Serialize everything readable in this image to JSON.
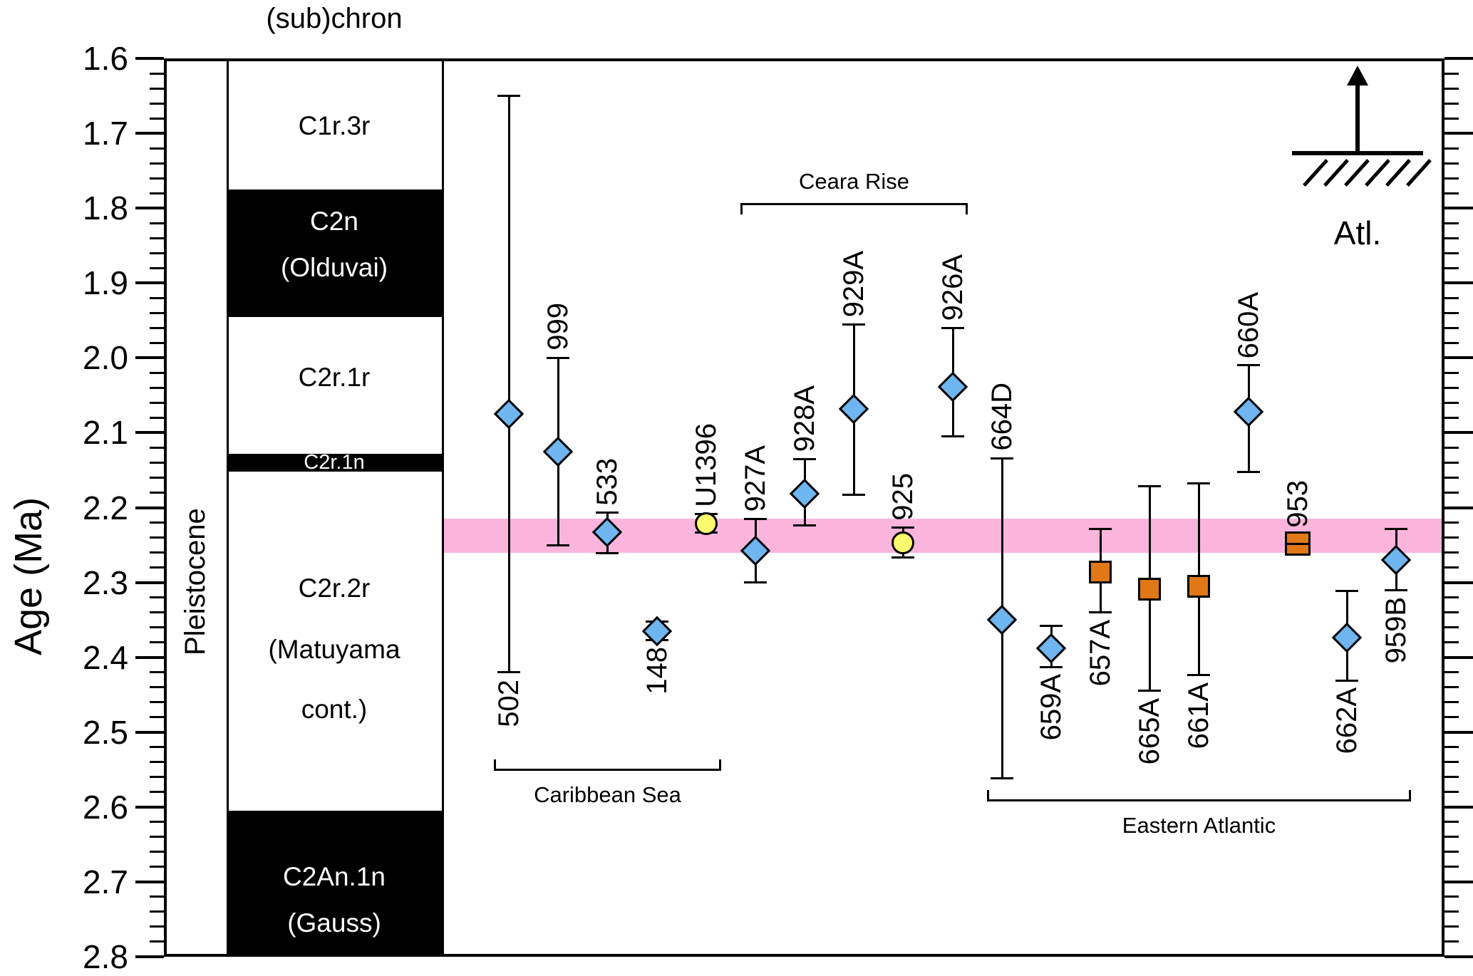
{
  "chart_data": {
    "type": "scatter",
    "title": "",
    "ylabel": "Age (Ma)",
    "header": "(sub)chron",
    "epoch_label": "Pleistocene",
    "ylim": [
      1.6,
      2.8
    ],
    "y_direction": "age-increases-downward",
    "y_major_step": 0.1,
    "y_minor_step": 0.02,
    "y_tick_labels": [
      "1.6",
      "1.7",
      "1.8",
      "1.9",
      "2.0",
      "2.1",
      "2.2",
      "2.3",
      "2.4",
      "2.5",
      "2.6",
      "2.7",
      "2.8"
    ],
    "grid": false,
    "highlight_band": {
      "from_ma": 2.215,
      "to_ma": 2.261,
      "color": "#FBB5DC"
    },
    "polarity_column": [
      {
        "name": "C1r.3r",
        "from_ma": 1.6,
        "to_ma": 1.775,
        "fill": "white",
        "labels": [
          {
            "text": "C1r.3r",
            "age": 1.69,
            "size": "normal"
          }
        ]
      },
      {
        "name": "C2n (Olduvai)",
        "from_ma": 1.775,
        "to_ma": 1.945,
        "fill": "black",
        "labels": [
          {
            "text": "C2n",
            "age": 1.818,
            "size": "normal"
          },
          {
            "text": "(Olduvai)",
            "age": 1.88,
            "size": "normal"
          }
        ]
      },
      {
        "name": "C2r.1r",
        "from_ma": 1.945,
        "to_ma": 2.128,
        "fill": "white",
        "labels": [
          {
            "text": "C2r.1r",
            "age": 2.026,
            "size": "normal"
          }
        ]
      },
      {
        "name": "C2r.1n",
        "from_ma": 2.128,
        "to_ma": 2.152,
        "fill": "black",
        "labels": [
          {
            "text": "C2r.1n",
            "age": 2.14,
            "size": "small"
          }
        ]
      },
      {
        "name": "C2r.2r (Matuyama cont.)",
        "from_ma": 2.152,
        "to_ma": 2.605,
        "fill": "white",
        "labels": [
          {
            "text": "C2r.2r",
            "age": 2.308,
            "size": "normal"
          },
          {
            "text": "(Matuyama",
            "age": 2.39,
            "size": "normal"
          },
          {
            "text": "cont.)",
            "age": 2.47,
            "size": "normal"
          }
        ]
      },
      {
        "name": "C2An.1n (Gauss)",
        "from_ma": 2.605,
        "to_ma": 2.8,
        "fill": "black",
        "labels": [
          {
            "text": "C2An.1n",
            "age": 2.693,
            "size": "normal"
          },
          {
            "text": "(Gauss)",
            "age": 2.755,
            "size": "normal"
          }
        ]
      }
    ],
    "sites": [
      {
        "id": "502",
        "marker": "diamond",
        "color_key": "blue",
        "value_ma": 2.075,
        "err_min_ma": 1.65,
        "err_max_ma": 2.42,
        "label_side": "below",
        "group": "Caribbean Sea"
      },
      {
        "id": "999",
        "marker": "diamond",
        "color_key": "blue",
        "value_ma": 2.125,
        "err_min_ma": 2.0,
        "err_max_ma": 2.25,
        "label_side": "above",
        "group": "Caribbean Sea"
      },
      {
        "id": "533",
        "marker": "diamond",
        "color_key": "blue",
        "value_ma": 2.233,
        "err_min_ma": 2.207,
        "err_max_ma": 2.261,
        "label_side": "above",
        "group": "Caribbean Sea"
      },
      {
        "id": "148",
        "marker": "diamond",
        "color_key": "blue",
        "value_ma": 2.365,
        "err_min_ma": 2.352,
        "err_max_ma": 2.377,
        "label_side": "below",
        "group": "Caribbean Sea"
      },
      {
        "id": "U1396",
        "marker": "circle",
        "color_key": "yellow",
        "value_ma": 2.221,
        "err_min_ma": 2.209,
        "err_max_ma": 2.233,
        "label_side": "above",
        "group": "Caribbean Sea"
      },
      {
        "id": "927A",
        "marker": "diamond",
        "color_key": "blue",
        "value_ma": 2.258,
        "err_min_ma": 2.215,
        "err_max_ma": 2.3,
        "label_side": "above",
        "group": "Ceara Rise"
      },
      {
        "id": "928A",
        "marker": "diamond",
        "color_key": "blue",
        "value_ma": 2.181,
        "err_min_ma": 2.135,
        "err_max_ma": 2.224,
        "label_side": "above",
        "group": "Ceara Rise"
      },
      {
        "id": "929A",
        "marker": "diamond",
        "color_key": "blue",
        "value_ma": 2.068,
        "err_min_ma": 1.955,
        "err_max_ma": 2.183,
        "label_side": "above",
        "group": "Ceara Rise"
      },
      {
        "id": "925",
        "marker": "circle",
        "color_key": "yellow",
        "value_ma": 2.247,
        "err_min_ma": 2.227,
        "err_max_ma": 2.267,
        "label_side": "above",
        "group": "Ceara Rise"
      },
      {
        "id": "926A",
        "marker": "diamond",
        "color_key": "blue",
        "value_ma": 2.039,
        "err_min_ma": 1.96,
        "err_max_ma": 2.105,
        "label_side": "above",
        "group": "Ceara Rise"
      },
      {
        "id": "664D",
        "marker": "diamond",
        "color_key": "blue",
        "value_ma": 2.35,
        "err_min_ma": 2.134,
        "err_max_ma": 2.562,
        "label_side": "above",
        "group": "Eastern Atlantic"
      },
      {
        "id": "659A",
        "marker": "diamond",
        "color_key": "blue",
        "value_ma": 2.388,
        "err_min_ma": 2.358,
        "err_max_ma": 2.413,
        "label_side": "below",
        "group": "Eastern Atlantic"
      },
      {
        "id": "657A",
        "marker": "square",
        "color_key": "orange",
        "value_ma": 2.286,
        "err_min_ma": 2.229,
        "err_max_ma": 2.34,
        "label_side": "below",
        "group": "Eastern Atlantic"
      },
      {
        "id": "665A",
        "marker": "square",
        "color_key": "orange",
        "value_ma": 2.309,
        "err_min_ma": 2.171,
        "err_max_ma": 2.445,
        "label_side": "below",
        "group": "Eastern Atlantic"
      },
      {
        "id": "661A",
        "marker": "square",
        "color_key": "orange",
        "value_ma": 2.305,
        "err_min_ma": 2.168,
        "err_max_ma": 2.424,
        "label_side": "below",
        "group": "Eastern Atlantic"
      },
      {
        "id": "660A",
        "marker": "diamond",
        "color_key": "blue",
        "value_ma": 2.072,
        "err_min_ma": 2.01,
        "err_max_ma": 2.152,
        "label_side": "above",
        "group": "Eastern Atlantic"
      },
      {
        "id": "953",
        "marker": "square-double",
        "color_key": "orange",
        "value_ma": 2.248,
        "err_min_ma": 2.237,
        "err_max_ma": 2.258,
        "label_side": "above",
        "group": "Eastern Atlantic"
      },
      {
        "id": "662A",
        "marker": "diamond",
        "color_key": "blue",
        "value_ma": 2.374,
        "err_min_ma": 2.311,
        "err_max_ma": 2.431,
        "label_side": "below",
        "group": "Eastern Atlantic"
      },
      {
        "id": "959B",
        "marker": "diamond",
        "color_key": "blue",
        "value_ma": 2.27,
        "err_min_ma": 2.229,
        "err_max_ma": 2.31,
        "label_side": "below",
        "group": "Eastern Atlantic"
      }
    ],
    "groups": [
      {
        "id": "caribbean_sea",
        "label": "Caribbean Sea",
        "first_site": "502",
        "last_site": "U1396",
        "bracket_side": "below"
      },
      {
        "id": "ceara_rise",
        "label": "Ceara Rise",
        "first_site": "927A",
        "last_site": "926A",
        "bracket_side": "above"
      },
      {
        "id": "eastern_atlantic",
        "label": "Eastern Atlantic",
        "first_site": "664D",
        "last_site": "959B",
        "bracket_side": "below"
      }
    ],
    "annotation": {
      "label": "Atl.",
      "icon": "arrow-up-through-hatched-ground"
    },
    "legend_position": "none",
    "colors": {
      "site_blue": "#6FB6F0",
      "site_yellow": "#FAFA6E",
      "site_orange": "#E07818",
      "band_pink": "#FBB5DC",
      "polarity_black": "#000000",
      "error_bar": "#000000"
    }
  }
}
